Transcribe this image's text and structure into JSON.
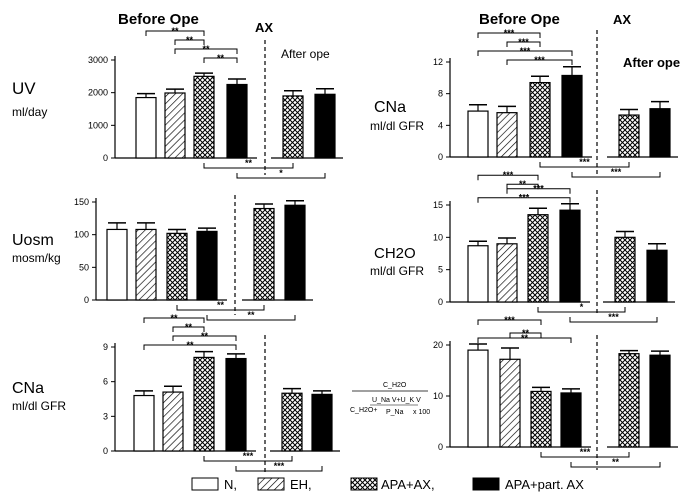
{
  "figure": {
    "header_before": "Before Ope",
    "header_ax": "AX",
    "header_after": "After ope",
    "legend": [
      {
        "label": "N,",
        "pattern": "white"
      },
      {
        "label": "EH,",
        "pattern": "hatch"
      },
      {
        "label": "APA+AX,",
        "pattern": "cross"
      },
      {
        "label": "APA+part. AX",
        "pattern": "black"
      }
    ],
    "formula": {
      "numerator": "C_H2O",
      "inner_num": "U_Na V+U_K V",
      "inner_den": "P_Na",
      "prefix": "C_H2O+",
      "times": "x 100"
    }
  },
  "chart_data": [
    {
      "type": "bar",
      "id": "uv",
      "ylabel_main": "UV",
      "ylabel_unit": "ml/day",
      "ylim": [
        0,
        3000
      ],
      "yticks": [
        "0",
        "1000",
        "2000",
        "3000"
      ],
      "groups": [
        "N",
        "EH",
        "APA+AX",
        "APA+part. AX"
      ],
      "before": [
        1850,
        1990,
        2500,
        2250
      ],
      "before_err": [
        120,
        120,
        100,
        170
      ],
      "after": [
        1900,
        1950
      ],
      "after_err": [
        160,
        170
      ],
      "top_sig": [
        {
          "a": 0,
          "b": 2,
          "stars": "**"
        },
        {
          "a": 1,
          "b": 2,
          "stars": "**"
        },
        {
          "a": 1,
          "b": 3,
          "stars": "**"
        },
        {
          "a": 2,
          "b": 3,
          "stars": "**"
        }
      ],
      "bottom_sig": [
        {
          "a": 2,
          "b": 4,
          "stars": "**"
        },
        {
          "a": 3,
          "b": 5,
          "stars": "*"
        }
      ]
    },
    {
      "type": "bar",
      "id": "cna-upper",
      "ylabel_main": "CNa",
      "ylabel_unit": "ml/dl GFR",
      "ylim": [
        0,
        12
      ],
      "yticks": [
        "0",
        "4",
        "8",
        "12"
      ],
      "groups": [
        "N",
        "EH",
        "APA+AX",
        "APA+part. AX"
      ],
      "before": [
        5.8,
        5.6,
        9.4,
        10.3
      ],
      "before_err": [
        0.8,
        0.8,
        0.8,
        1.1
      ],
      "after": [
        5.3,
        6.1
      ],
      "after_err": [
        0.7,
        0.9
      ],
      "top_sig": [
        {
          "a": 0,
          "b": 2,
          "stars": "***"
        },
        {
          "a": 1,
          "b": 2,
          "stars": "***"
        },
        {
          "a": 0,
          "b": 3,
          "stars": "***"
        },
        {
          "a": 1,
          "b": 3,
          "stars": "***"
        }
      ],
      "bottom_sig": [
        {
          "a": 2,
          "b": 4,
          "stars": "***"
        },
        {
          "a": 3,
          "b": 5,
          "stars": "***"
        }
      ]
    },
    {
      "type": "bar",
      "id": "uosm",
      "ylabel_main": "Uosm",
      "ylabel_unit": "mosm/kg",
      "ylim": [
        0,
        150
      ],
      "yticks": [
        "0",
        "50",
        "100",
        "150"
      ],
      "groups": [
        "N",
        "EH",
        "APA+AX",
        "APA+part. AX"
      ],
      "before": [
        108,
        108,
        102,
        105
      ],
      "before_err": [
        10,
        10,
        6,
        5
      ],
      "after": [
        140,
        145
      ],
      "after_err": [
        7,
        7
      ],
      "top_sig": [],
      "bottom_sig": [
        {
          "a": 2,
          "b": 4,
          "stars": "**"
        },
        {
          "a": 3,
          "b": 5,
          "stars": "**"
        }
      ]
    },
    {
      "type": "bar",
      "id": "ch2o",
      "ylabel_main": "CH2O",
      "ylabel_unit": "ml/dl GFR",
      "ylim": [
        0,
        15
      ],
      "yticks": [
        "0",
        "5",
        "10",
        "15"
      ],
      "groups": [
        "N",
        "EH",
        "APA+AX",
        "APA+part. AX"
      ],
      "before": [
        8.7,
        9.0,
        13.5,
        14.2
      ],
      "before_err": [
        0.7,
        0.9,
        1.0,
        1.0
      ],
      "after": [
        10.0,
        8.0
      ],
      "after_err": [
        0.9,
        1.0
      ],
      "top_sig": [
        {
          "a": 0,
          "b": 2,
          "stars": "***"
        },
        {
          "a": 1,
          "b": 2,
          "stars": "**"
        },
        {
          "a": 1,
          "b": 3,
          "stars": "***"
        },
        {
          "a": 0,
          "b": 3,
          "stars": "***"
        }
      ],
      "bottom_sig": [
        {
          "a": 2,
          "b": 4,
          "stars": "*"
        },
        {
          "a": 3,
          "b": 5,
          "stars": "***"
        }
      ]
    },
    {
      "type": "bar",
      "id": "cna-lower",
      "ylabel_main": "CNa",
      "ylabel_unit": "ml/dl GFR",
      "ylim": [
        0,
        9
      ],
      "yticks": [
        "0",
        "3",
        "6",
        "9"
      ],
      "groups": [
        "N",
        "EH",
        "APA+AX",
        "APA+part. AX"
      ],
      "before": [
        4.8,
        5.1,
        8.1,
        8.0
      ],
      "before_err": [
        0.4,
        0.5,
        0.5,
        0.4
      ],
      "after": [
        5.0,
        4.9
      ],
      "after_err": [
        0.4,
        0.3
      ],
      "top_sig": [
        {
          "a": 0,
          "b": 2,
          "stars": "**"
        },
        {
          "a": 1,
          "b": 2,
          "stars": "**"
        },
        {
          "a": 1,
          "b": 3,
          "stars": "**"
        },
        {
          "a": 0,
          "b": 3,
          "stars": "**"
        }
      ],
      "bottom_sig": [
        {
          "a": 2,
          "b": 4,
          "stars": "***"
        },
        {
          "a": 3,
          "b": 5,
          "stars": "***"
        }
      ]
    },
    {
      "type": "bar",
      "id": "ratio",
      "ylabel_main": "",
      "ylabel_unit": "",
      "ylim": [
        0,
        20
      ],
      "yticks": [
        "0",
        "10",
        "20"
      ],
      "groups": [
        "N",
        "EH",
        "APA+AX",
        "APA+part. AX"
      ],
      "before": [
        19.0,
        17.2,
        10.9,
        10.6
      ],
      "before_err": [
        1.2,
        2.2,
        0.8,
        0.8
      ],
      "after": [
        18.3,
        18.0
      ],
      "after_err": [
        0.6,
        0.8
      ],
      "top_sig": [
        {
          "a": 0,
          "b": 2,
          "stars": "***"
        },
        {
          "a": 1,
          "b": 2,
          "stars": "**"
        },
        {
          "a": 0,
          "b": 3,
          "stars": "**"
        }
      ],
      "bottom_sig": [
        {
          "a": 2,
          "b": 4,
          "stars": "***"
        },
        {
          "a": 3,
          "b": 5,
          "stars": "**"
        }
      ]
    }
  ]
}
